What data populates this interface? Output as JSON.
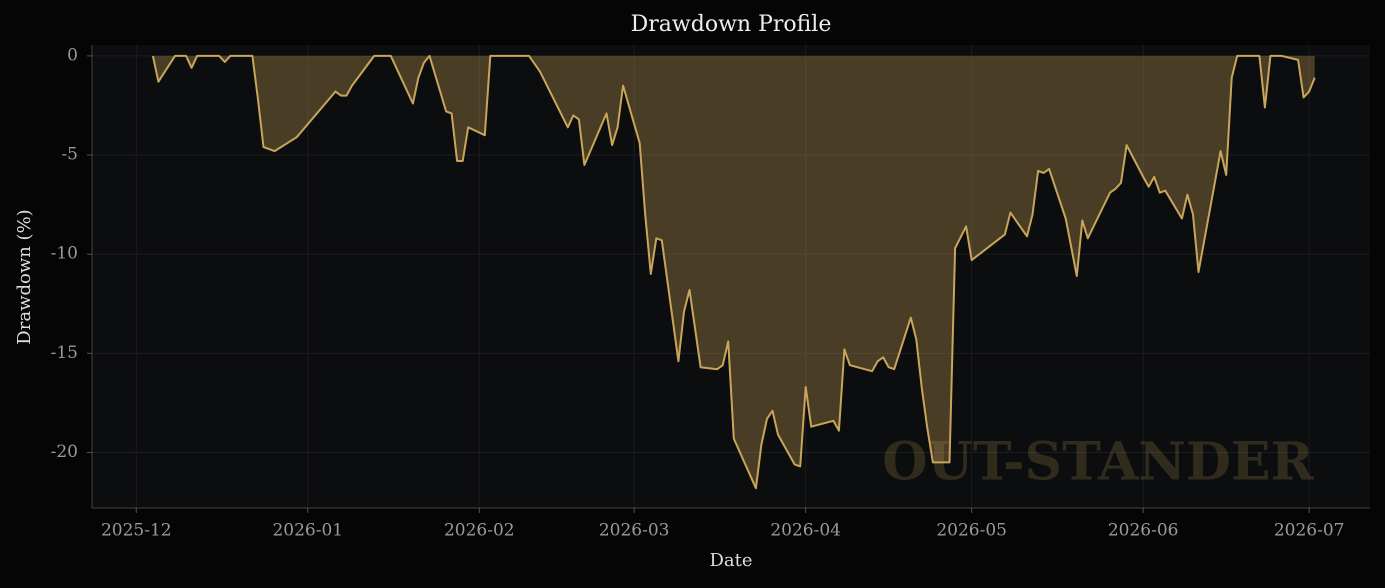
{
  "chart_data": {
    "type": "area",
    "title": "Drawdown Profile",
    "xlabel": "Date",
    "ylabel": "Drawdown (%)",
    "watermark": "OUT-STANDER",
    "x": [
      "2025-12-04",
      "2025-12-05",
      "2025-12-08",
      "2025-12-10",
      "2025-12-11",
      "2025-12-12",
      "2025-12-16",
      "2025-12-17",
      "2025-12-18",
      "2025-12-22",
      "2025-12-23",
      "2025-12-24",
      "2025-12-26",
      "2025-12-30",
      "2026-01-06",
      "2026-01-07",
      "2026-01-08",
      "2026-01-09",
      "2026-01-13",
      "2026-01-16",
      "2026-01-20",
      "2026-01-21",
      "2026-01-22",
      "2026-01-23",
      "2026-01-26",
      "2026-01-27",
      "2026-01-28",
      "2026-01-29",
      "2026-01-30",
      "2026-02-02",
      "2026-02-03",
      "2026-02-10",
      "2026-02-12",
      "2026-02-17",
      "2026-02-18",
      "2026-02-19",
      "2026-02-20",
      "2026-02-24",
      "2026-02-25",
      "2026-02-26",
      "2026-02-27",
      "2026-03-02",
      "2026-03-03",
      "2026-03-04",
      "2026-03-05",
      "2026-03-06",
      "2026-03-09",
      "2026-03-10",
      "2026-03-11",
      "2026-03-13",
      "2026-03-16",
      "2026-03-17",
      "2026-03-18",
      "2026-03-19",
      "2026-03-23",
      "2026-03-24",
      "2026-03-25",
      "2026-03-26",
      "2026-03-27",
      "2026-03-30",
      "2026-03-31",
      "2026-04-01",
      "2026-04-02",
      "2026-04-06",
      "2026-04-07",
      "2026-04-08",
      "2026-04-09",
      "2026-04-13",
      "2026-04-14",
      "2026-04-15",
      "2026-04-16",
      "2026-04-17",
      "2026-04-20",
      "2026-04-21",
      "2026-04-22",
      "2026-04-23",
      "2026-04-24",
      "2026-04-27",
      "2026-04-28",
      "2026-04-30",
      "2026-05-01",
      "2026-05-07",
      "2026-05-08",
      "2026-05-11",
      "2026-05-12",
      "2026-05-13",
      "2026-05-14",
      "2026-05-15",
      "2026-05-18",
      "2026-05-20",
      "2026-05-21",
      "2026-05-22",
      "2026-05-26",
      "2026-05-27",
      "2026-05-28",
      "2026-05-29",
      "2026-06-01",
      "2026-06-02",
      "2026-06-03",
      "2026-06-04",
      "2026-06-05",
      "2026-06-08",
      "2026-06-09",
      "2026-06-10",
      "2026-06-11",
      "2026-06-15",
      "2026-06-16",
      "2026-06-17",
      "2026-06-18",
      "2026-06-22",
      "2026-06-23",
      "2026-06-24",
      "2026-06-26",
      "2026-06-29",
      "2026-06-30",
      "2026-07-01",
      "2026-07-02"
    ],
    "values": [
      0,
      -1.3,
      0,
      0,
      -0.6,
      0,
      0,
      -0.3,
      0,
      0,
      -2.2,
      -4.6,
      -4.8,
      -4.1,
      -1.8,
      -2.0,
      -2.0,
      -1.5,
      0,
      0,
      -2.4,
      -1.1,
      -0.35,
      0,
      -2.8,
      -2.9,
      -5.3,
      -5.3,
      -3.6,
      -4.0,
      0,
      0,
      -0.8,
      -3.6,
      -3.0,
      -3.2,
      -5.5,
      -2.9,
      -4.5,
      -3.6,
      -1.5,
      -4.4,
      -8.0,
      -11.0,
      -9.2,
      -9.3,
      -15.4,
      -12.9,
      -11.8,
      -15.7,
      -15.8,
      -15.6,
      -14.4,
      -19.3,
      -21.8,
      -19.6,
      -18.3,
      -17.9,
      -19.1,
      -20.6,
      -20.7,
      -16.7,
      -18.7,
      -18.4,
      -18.9,
      -14.8,
      -15.6,
      -15.9,
      -15.4,
      -15.2,
      -15.7,
      -15.8,
      -13.2,
      -14.3,
      -16.8,
      -18.8,
      -20.5,
      -20.5,
      -9.7,
      -8.6,
      -10.3,
      -9.0,
      -7.9,
      -9.1,
      -8.0,
      -5.8,
      -5.9,
      -5.7,
      -8.2,
      -11.1,
      -8.3,
      -9.2,
      -6.9,
      -6.7,
      -6.4,
      -4.5,
      -6.1,
      -6.6,
      -6.1,
      -6.9,
      -6.8,
      -8.2,
      -7.0,
      -8.0,
      -10.9,
      -4.8,
      -6.0,
      -1.1,
      0,
      0,
      -2.6,
      0,
      0,
      -0.2,
      -2.1,
      -1.8,
      -1.1
    ],
    "color": "#c9a55a",
    "xlim": [
      "2025-11-23",
      "2026-07-12"
    ],
    "xticks": [
      {
        "value": "2025-12-01",
        "label": "2025-12"
      },
      {
        "value": "2026-01-01",
        "label": "2026-01"
      },
      {
        "value": "2026-02-01",
        "label": "2026-02"
      },
      {
        "value": "2026-03-01",
        "label": "2026-03"
      },
      {
        "value": "2026-04-01",
        "label": "2026-04"
      },
      {
        "value": "2026-05-01",
        "label": "2026-05"
      },
      {
        "value": "2026-06-01",
        "label": "2026-06"
      },
      {
        "value": "2026-07-01",
        "label": "2026-07"
      }
    ],
    "ylim": [
      -22.8,
      0.55
    ],
    "yticks": [
      -20,
      -15,
      -10,
      -5,
      0
    ],
    "grid": true
  }
}
